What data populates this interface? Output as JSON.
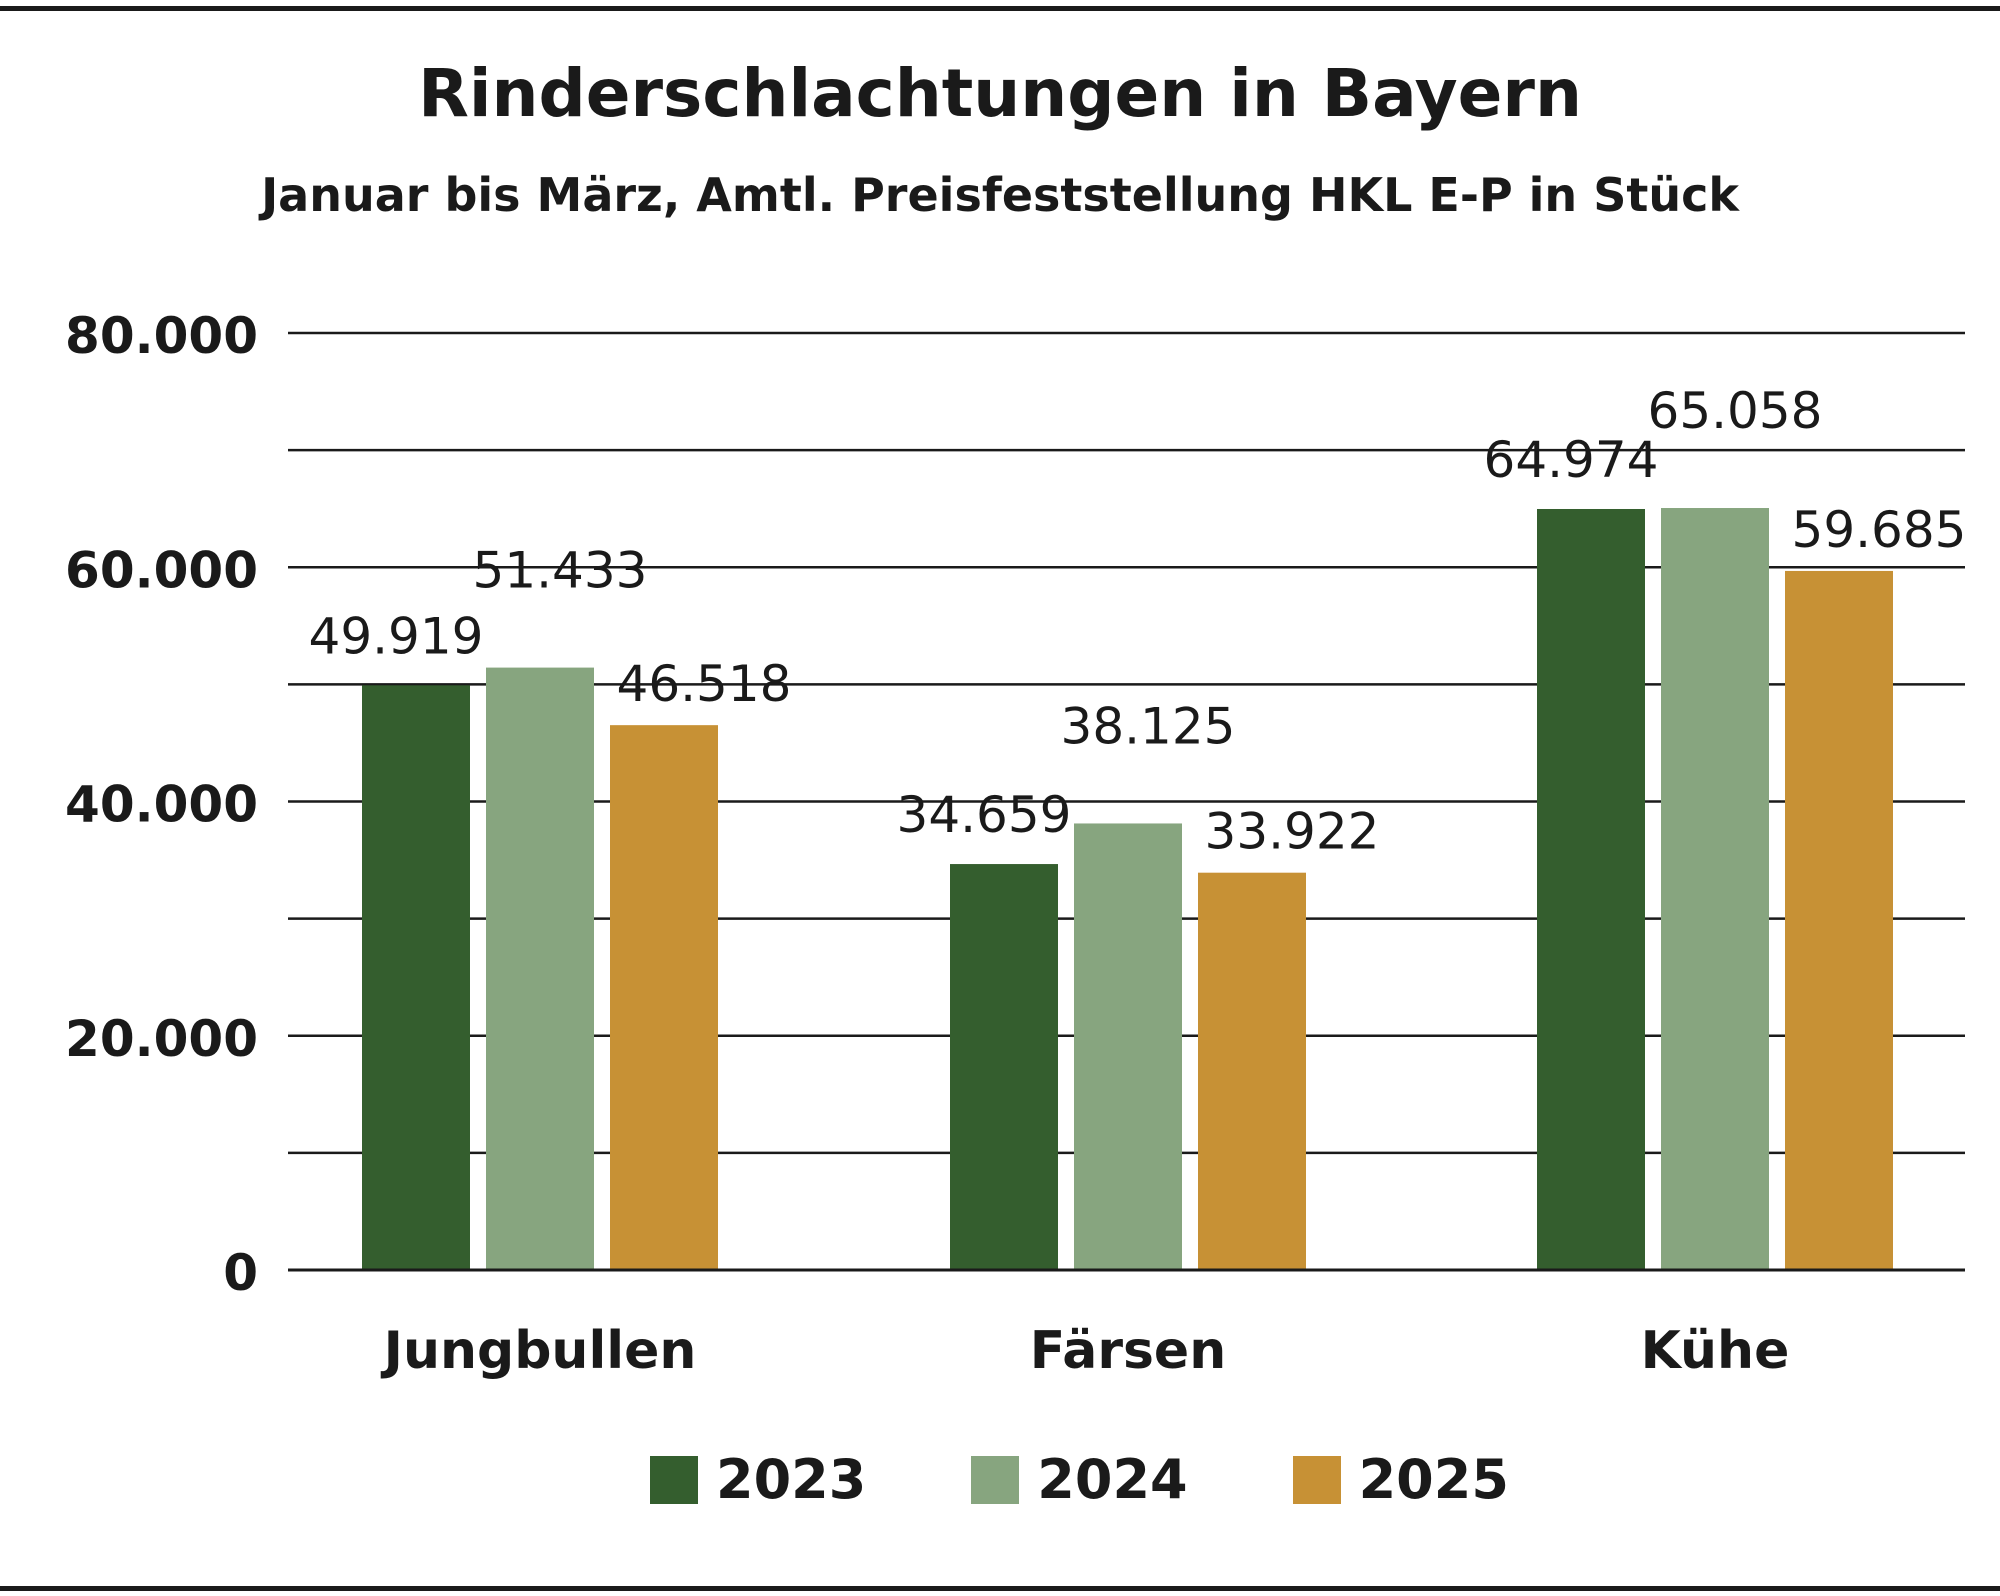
{
  "chart_data": {
    "type": "bar",
    "title": "Rinderschlachtungen in Bayern",
    "subtitle": "Januar bis März, Amtl. Preisfeststellung HKL E-P in Stück",
    "categories": [
      "Jungbullen",
      "Färsen",
      "Kühe"
    ],
    "series": [
      {
        "name": "2023",
        "color": "#345e2e",
        "values": [
          49919,
          34659,
          64974
        ],
        "labels": [
          "49.919",
          "34.659",
          "64.974"
        ]
      },
      {
        "name": "2024",
        "color": "#87a57f",
        "values": [
          51433,
          38125,
          65058
        ],
        "labels": [
          "51.433",
          "38.125",
          "65.058"
        ]
      },
      {
        "name": "2025",
        "color": "#c79135",
        "values": [
          46518,
          33922,
          59685
        ],
        "labels": [
          "46.518",
          "33.922",
          "59.685"
        ]
      }
    ],
    "ylim": [
      0,
      80000
    ],
    "yticks": [
      0,
      20000,
      40000,
      60000,
      80000
    ],
    "ytick_labels": [
      "0",
      "20.000",
      "40.000",
      "60.000",
      "80.000"
    ],
    "minor_gridlines": [
      10000,
      30000,
      50000,
      70000
    ],
    "grid": true,
    "legend_position": "bottom-center",
    "xlabel": "",
    "ylabel": ""
  }
}
